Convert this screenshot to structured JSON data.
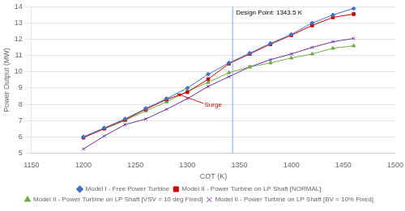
{
  "chart_data": {
    "type": "line",
    "xlabel": "COT (K)",
    "ylabel": "Power Output (MW)",
    "xlim": [
      1150,
      1500
    ],
    "ylim": [
      5,
      14
    ],
    "xticks": [
      1150,
      1200,
      1250,
      1300,
      1350,
      1400,
      1450,
      1500
    ],
    "yticks": [
      5,
      6,
      7,
      8,
      9,
      10,
      11,
      12,
      13,
      14
    ],
    "grid": "y",
    "legend": "bottom",
    "annotations": [
      {
        "type": "vline",
        "x": 1343.5,
        "text": "Design Point: 1343.5 K",
        "color": "#6699CC"
      },
      {
        "type": "arrow",
        "x": 1290,
        "y": 8.65,
        "text": "Surge",
        "color": "#CC0000"
      }
    ],
    "series": [
      {
        "name": "Model I - Free Power Turbine",
        "color": "#4472C4",
        "marker": "diamond",
        "x": [
          1200,
          1220,
          1240,
          1260,
          1280,
          1300,
          1320,
          1340,
          1360,
          1380,
          1400,
          1420,
          1440,
          1460
        ],
        "values": [
          6.0,
          6.55,
          7.1,
          7.75,
          8.35,
          9.0,
          9.85,
          10.55,
          11.15,
          11.75,
          12.3,
          13.0,
          13.5,
          13.9
        ]
      },
      {
        "name": "Model II - Power Turbine on LP Shaft [NORMAL]",
        "color": "#CC0000",
        "marker": "square",
        "x": [
          1200,
          1220,
          1240,
          1260,
          1280,
          1300,
          1320,
          1340,
          1360,
          1380,
          1400,
          1420,
          1440,
          1460
        ],
        "values": [
          5.95,
          6.5,
          7.05,
          7.7,
          8.3,
          8.75,
          9.55,
          10.5,
          11.1,
          11.7,
          12.25,
          12.85,
          13.35,
          13.55
        ]
      },
      {
        "name": "Model II - Power Turbine on LP Shaft [VSV = 10 deg Fixed]",
        "color": "#70AD47",
        "marker": "triangle",
        "x": [
          1200,
          1220,
          1240,
          1260,
          1280,
          1300,
          1320,
          1340,
          1360,
          1380,
          1400,
          1420,
          1440,
          1460
        ],
        "values": [
          6.0,
          6.5,
          7.0,
          7.6,
          8.15,
          8.8,
          9.35,
          9.95,
          10.3,
          10.55,
          10.85,
          11.1,
          11.45,
          11.6
        ]
      },
      {
        "name": "Model II - Power Turbine on LP Shaft [BV = 10% Fixed]",
        "color": "#7030A0",
        "marker": "x",
        "x": [
          1200,
          1220,
          1240,
          1260,
          1280,
          1300,
          1320,
          1340,
          1360,
          1380,
          1400,
          1420,
          1440,
          1460
        ],
        "values": [
          5.25,
          6.05,
          6.75,
          7.1,
          7.7,
          8.35,
          9.1,
          9.7,
          10.3,
          10.75,
          11.1,
          11.5,
          11.85,
          12.05
        ]
      }
    ]
  }
}
